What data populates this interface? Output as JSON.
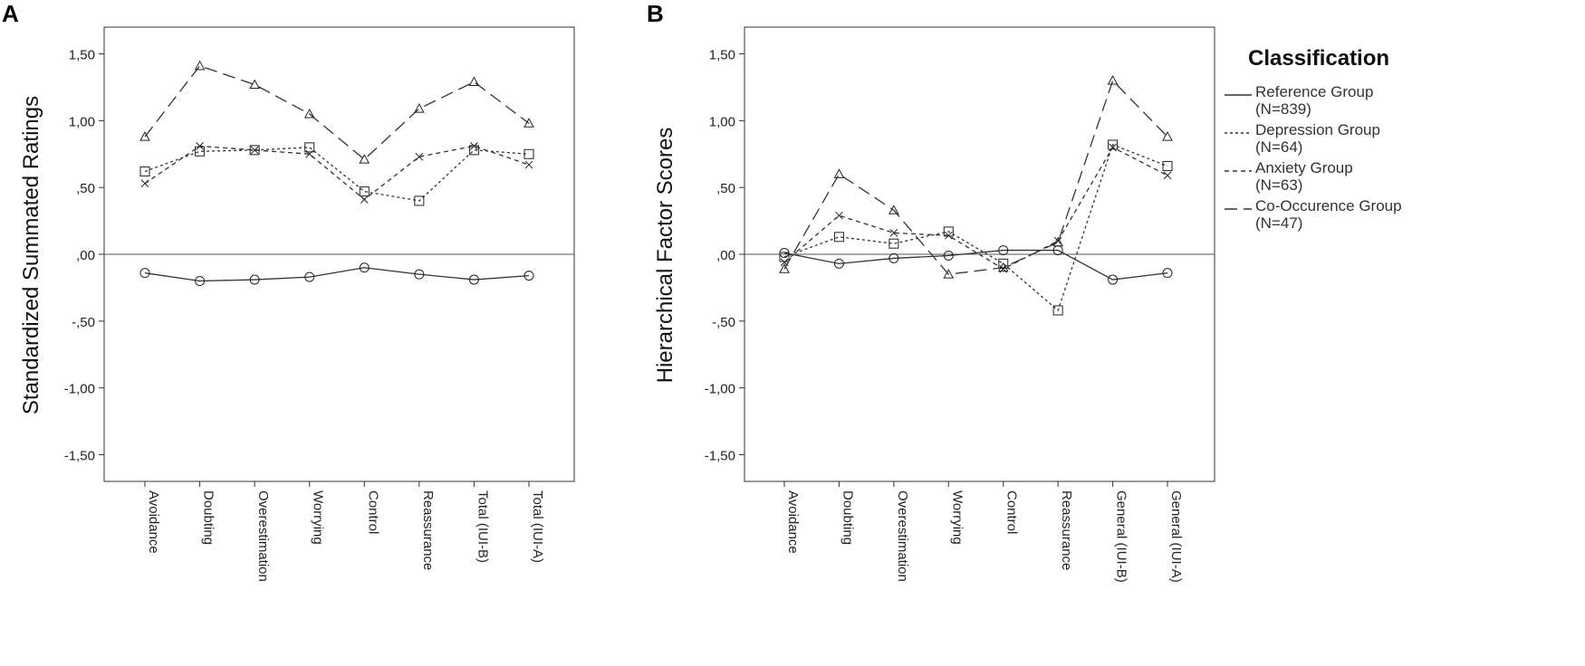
{
  "chart_data": [
    {
      "type": "line",
      "panel_label": "A",
      "ylabel": "Standardized Summated Ratings",
      "ylim": [
        -1.7,
        1.7
      ],
      "yticks": [
        1.5,
        1.0,
        0.5,
        0.0,
        -0.5,
        -1.0,
        -1.5
      ],
      "ytick_labels": [
        "1,50",
        "1,00",
        ",50",
        ",00",
        "-,50",
        "-1,00",
        "-1,50"
      ],
      "reference_line": 0,
      "categories": [
        "Avoidance",
        "Doubting",
        "Overestimation",
        "Worrying",
        "Control",
        "Reassurance",
        "Total (IUI-B)",
        "Total (IUI-A)"
      ],
      "series": [
        {
          "name": "Reference Group (N=839)",
          "marker": "circle",
          "dash": "solid",
          "values": [
            -0.14,
            -0.2,
            -0.19,
            -0.17,
            -0.1,
            -0.15,
            -0.19,
            -0.16
          ]
        },
        {
          "name": "Depression Group (N=64)",
          "marker": "square",
          "dash": "dot",
          "values": [
            0.62,
            0.77,
            0.78,
            0.8,
            0.47,
            0.4,
            0.78,
            0.75
          ]
        },
        {
          "name": "Anxiety Group (N=63)",
          "marker": "x",
          "dash": "shortdash",
          "values": [
            0.53,
            0.81,
            0.78,
            0.75,
            0.41,
            0.73,
            0.81,
            0.67
          ]
        },
        {
          "name": "Co-Occurence Group (N=47)",
          "marker": "triangle",
          "dash": "longdash",
          "values": [
            0.88,
            1.41,
            1.27,
            1.05,
            0.71,
            1.09,
            1.29,
            0.98
          ]
        }
      ]
    },
    {
      "type": "line",
      "panel_label": "B",
      "ylabel": "Hierarchical Factor Scores",
      "ylim": [
        -1.7,
        1.7
      ],
      "yticks": [
        1.5,
        1.0,
        0.5,
        0.0,
        -0.5,
        -1.0,
        -1.5
      ],
      "ytick_labels": [
        "1,50",
        "1,00",
        ",50",
        ",00",
        "-,50",
        "-1,00",
        "-1,50"
      ],
      "reference_line": 0,
      "categories": [
        "Avoidance",
        "Doubting",
        "Overestimation",
        "Worrying",
        "Control",
        "Reassurance",
        "General (IUI-B)",
        "General (IUI-A)"
      ],
      "series": [
        {
          "name": "Reference Group (N=839)",
          "marker": "circle",
          "dash": "solid",
          "values": [
            0.01,
            -0.07,
            -0.03,
            -0.01,
            0.03,
            0.03,
            -0.19,
            -0.14
          ]
        },
        {
          "name": "Depression Group (N=64)",
          "marker": "square",
          "dash": "dot",
          "values": [
            -0.02,
            0.13,
            0.08,
            0.17,
            -0.07,
            -0.42,
            0.82,
            0.66
          ]
        },
        {
          "name": "Anxiety Group (N=63)",
          "marker": "x",
          "dash": "shortdash",
          "values": [
            -0.06,
            0.29,
            0.16,
            0.14,
            -0.11,
            0.1,
            0.8,
            0.59
          ]
        },
        {
          "name": "Co-Occurence Group (N=47)",
          "marker": "triangle",
          "dash": "longdash",
          "values": [
            -0.11,
            0.6,
            0.33,
            -0.15,
            -0.1,
            0.09,
            1.3,
            0.88
          ]
        }
      ]
    }
  ],
  "legend": {
    "title": "Classification",
    "entries": [
      {
        "line1": "Reference Group",
        "line2": "(N=839)",
        "dash": "solid"
      },
      {
        "line1": "Depression Group",
        "line2": "(N=64)",
        "dash": "dot"
      },
      {
        "line1": "Anxiety Group",
        "line2": "(N=63)",
        "dash": "shortdash"
      },
      {
        "line1": "Co-Occurence Group",
        "line2": "(N=47)",
        "dash": "longdash"
      }
    ]
  }
}
